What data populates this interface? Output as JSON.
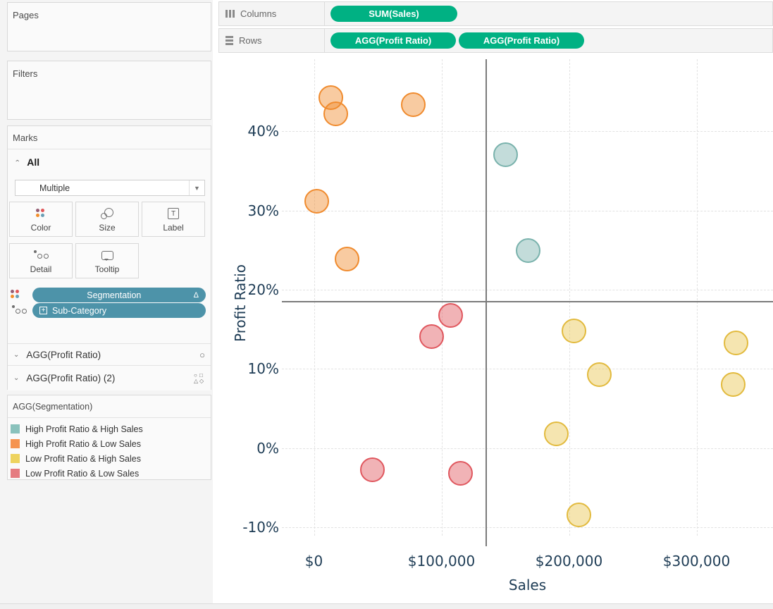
{
  "icons": {
    "collapse_chevron": "⌃",
    "expand_chevron": "⌄",
    "dropdown_caret": "▼",
    "delta": "Δ",
    "plus": "+",
    "label_t": "T",
    "circle_mark": "○",
    "shape_grid": [
      "○",
      "□",
      "△",
      "◇"
    ]
  },
  "sidebar": {
    "pages_label": "Pages",
    "filters_label": "Filters",
    "marks_label": "Marks",
    "all_label": "All",
    "mark_type": "Multiple",
    "buttons": [
      {
        "label": "Color",
        "icon": "color-icon"
      },
      {
        "label": "Size",
        "icon": "size-icon"
      },
      {
        "label": "Label",
        "icon": "label-icon"
      },
      {
        "label": "Detail",
        "icon": "detail-icon"
      },
      {
        "label": "Tooltip",
        "icon": "tooltip-icon"
      }
    ],
    "color_icon_dots": [
      "#955e74",
      "#e15759",
      "#f28e2b",
      "#6a9fb5"
    ],
    "pills": [
      {
        "label": "Segmentation",
        "suffix": "Δ",
        "icon": "color-icon"
      },
      {
        "label": "Sub-Category",
        "prefix_icon": "expand-box-icon",
        "icon": "detail-icon"
      }
    ],
    "mark_cards": [
      {
        "label": "AGG(Profit Ratio)",
        "mark_icon": "circle-mark-icon"
      },
      {
        "label": "AGG(Profit Ratio) (2)",
        "mark_icon": "shape-mark-icon"
      }
    ],
    "legend": {
      "title": "AGG(Segmentation)",
      "items": [
        {
          "label": "High Profit Ratio & High Sales",
          "color": "#8ac2bc"
        },
        {
          "label": "High Profit Ratio & Low Sales",
          "color": "#f59450"
        },
        {
          "label": "Low Profit Ratio & High Sales",
          "color": "#eed35f"
        },
        {
          "label": "Low Profit Ratio & Low Sales",
          "color": "#e57b80"
        }
      ]
    }
  },
  "shelves": {
    "columns_label": "Columns",
    "rows_label": "Rows",
    "pill_color": "#00b183",
    "columns_pills": [
      {
        "label": "SUM(Sales)",
        "width": 180
      }
    ],
    "rows_pills": [
      {
        "label": "AGG(Profit Ratio)",
        "width": 178
      },
      {
        "label": "AGG(Profit Ratio)",
        "width": 178
      }
    ]
  },
  "chart_data": {
    "type": "scatter",
    "xlabel": "Sales",
    "ylabel": "Profit Ratio",
    "x_ticks": [
      "$0",
      "$100,000",
      "$200,000",
      "$300,000"
    ],
    "x_tick_values": [
      0,
      100000,
      200000,
      300000
    ],
    "y_ticks": [
      "40%",
      "30%",
      "20%",
      "10%",
      "0%",
      "-10%"
    ],
    "y_tick_values": [
      40,
      30,
      20,
      10,
      0,
      -10
    ],
    "xlim": [
      -76000,
      360000
    ],
    "ylim": [
      -12.4,
      48.6
    ],
    "grid": true,
    "reference_lines": {
      "x_sales": 135000,
      "y_profit_ratio": 18.5
    },
    "series": [
      {
        "name": "High Profit Ratio & Low Sales",
        "stroke": "#f08b2e",
        "fill": "rgba(240,139,46,0.45)",
        "points": [
          [
            13000,
            44.3
          ],
          [
            17000,
            42.2
          ],
          [
            78000,
            43.4
          ],
          [
            2000,
            31.2
          ],
          [
            26000,
            23.9
          ]
        ]
      },
      {
        "name": "High Profit Ratio & High Sales",
        "stroke": "#79b2ac",
        "fill": "rgba(121,178,172,0.45)",
        "points": [
          [
            150000,
            37.0
          ],
          [
            168000,
            24.9
          ]
        ]
      },
      {
        "name": "Low Profit Ratio & Low Sales",
        "stroke": "#e0575e",
        "fill": "rgba(224,87,94,0.45)",
        "points": [
          [
            107000,
            16.7
          ],
          [
            92000,
            14.1
          ],
          [
            46000,
            -2.8
          ],
          [
            115000,
            -3.2
          ]
        ]
      },
      {
        "name": "Low Profit Ratio & High Sales",
        "stroke": "#e2ba3d",
        "fill": "rgba(233,197,80,0.45)",
        "points": [
          [
            204000,
            14.8
          ],
          [
            224000,
            9.3
          ],
          [
            331000,
            13.3
          ],
          [
            329000,
            8.0
          ],
          [
            190000,
            1.8
          ],
          [
            208000,
            -8.5
          ]
        ]
      }
    ]
  }
}
